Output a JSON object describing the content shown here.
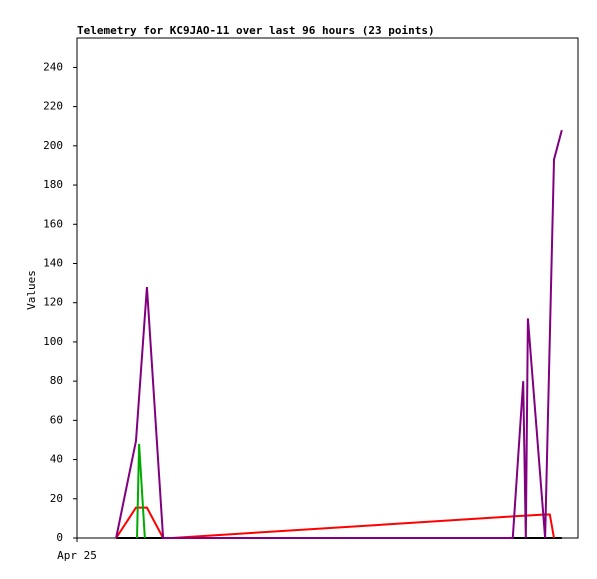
{
  "chart_data": {
    "type": "line",
    "title": "Telemetry for KC9JAO-11 over last 96 hours (23 points)",
    "ylabel": "Values",
    "xlim": [
      0,
      96
    ],
    "xticks": [
      {
        "value": 0,
        "label": "Apr 25"
      }
    ],
    "ylim": [
      0,
      255
    ],
    "yticks": [
      0,
      20,
      40,
      60,
      80,
      100,
      120,
      140,
      160,
      180,
      200,
      220,
      240
    ],
    "series": [
      {
        "color": "#000000",
        "x": [
          7.5,
          92.9
        ],
        "values": [
          0,
          0
        ]
      },
      {
        "color": "#ff0000",
        "x": [
          7.5,
          11.3,
          13.4,
          16.5,
          18.2,
          83.5,
          89.7,
          90.6,
          91.4
        ],
        "values": [
          0,
          15.5,
          15.5,
          0,
          0,
          11,
          12,
          12,
          0
        ]
      },
      {
        "color": "#00aa00",
        "x": [
          11.5,
          11.9,
          13.0
        ],
        "values": [
          0,
          48,
          0
        ]
      },
      {
        "color": "#800080",
        "x": [
          7.5,
          11.3,
          13.4,
          16.5,
          83.5,
          85.5,
          86.0,
          86.4,
          89.7,
          91.4,
          92.9
        ],
        "values": [
          0,
          49.5,
          128,
          0,
          0,
          80,
          0,
          112,
          0,
          193,
          208
        ]
      }
    ]
  }
}
